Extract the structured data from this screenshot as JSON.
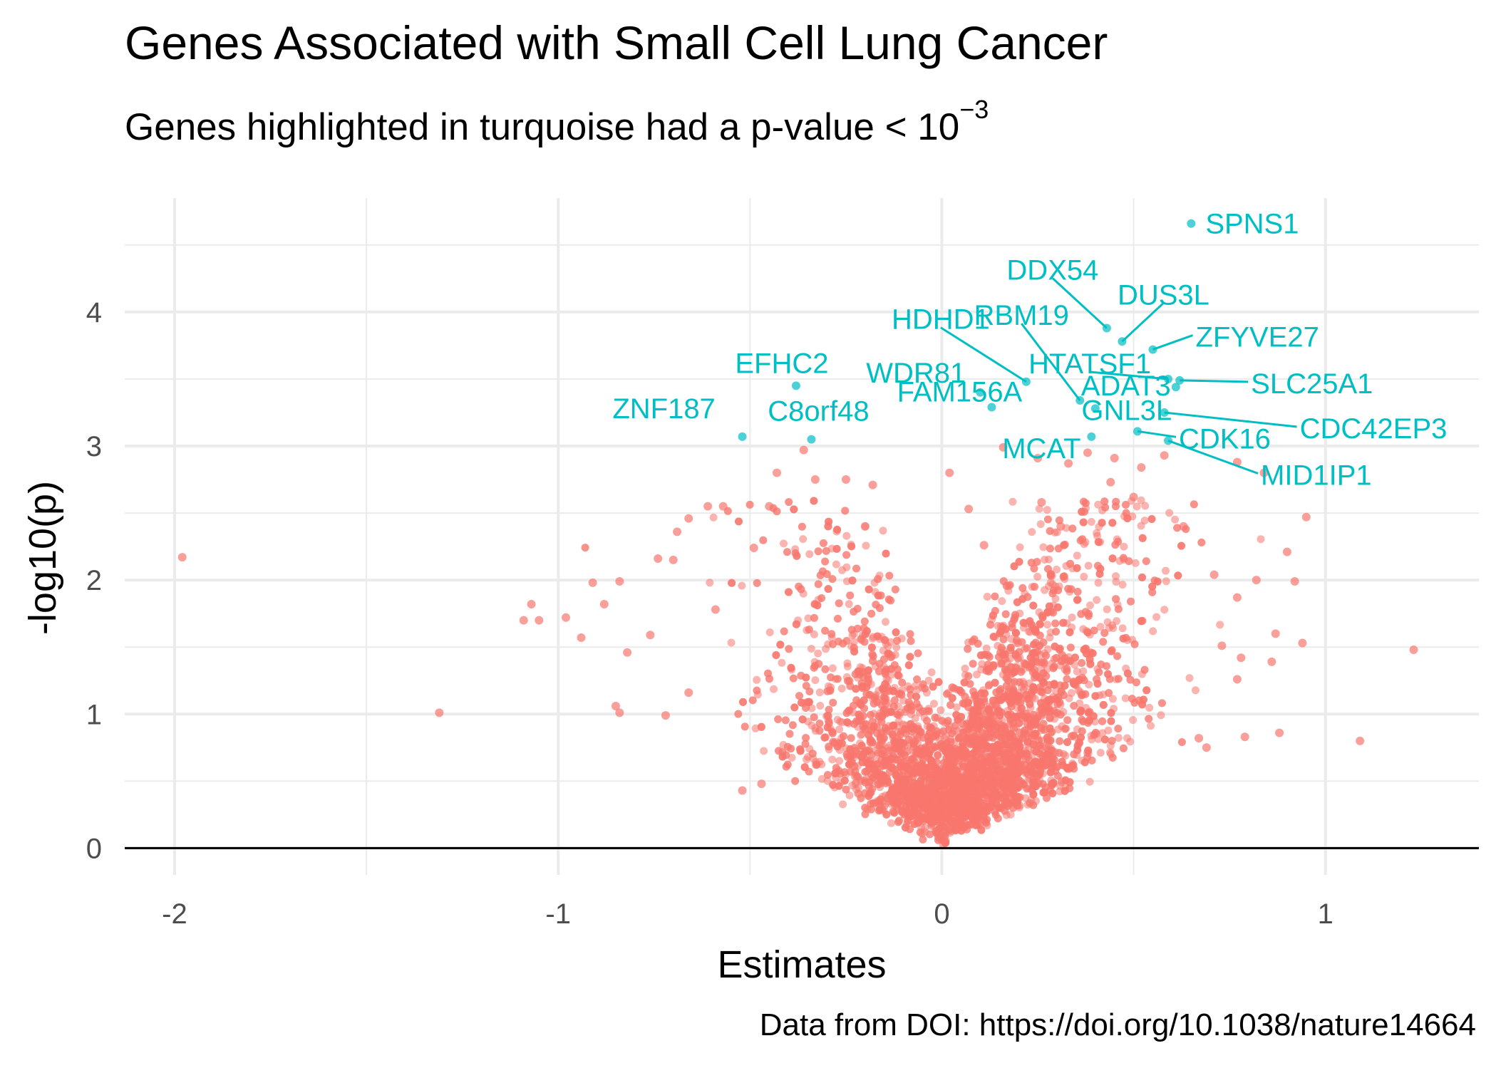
{
  "title": "Genes Associated with Small Cell Lung Cancer",
  "subtitle_text": "Genes highlighted in turquoise had a p-value < 10",
  "subtitle_exponent": "−3",
  "caption": "Data from DOI: https://doi.org/10.1038/nature14664",
  "colors": {
    "background_points": "#F8766D",
    "significant_points": "#00BFC4",
    "grid": "#ebebeb",
    "baseline": "#000000"
  },
  "chart_data": {
    "type": "scatter",
    "title": "Genes Associated with Small Cell Lung Cancer",
    "subtitle": "Genes highlighted in turquoise had a p-value < 10^-3",
    "xlabel": "Estimates",
    "ylabel": "-log10(p)",
    "xlim": [
      -2.13,
      1.4
    ],
    "ylim": [
      -0.2,
      4.85
    ],
    "x_ticks": [
      -2,
      -1,
      0,
      1
    ],
    "x_tick_labels": [
      "-2",
      "-1",
      "0",
      "1"
    ],
    "y_ticks": [
      0,
      1,
      2,
      3,
      4
    ],
    "y_tick_labels": [
      "0",
      "1",
      "2",
      "3",
      "4"
    ],
    "grid": true,
    "legend": "none",
    "series": [
      {
        "color": "#00BFC4",
        "points": [
          {
            "label": "SPNS1",
            "x": 0.65,
            "y": 4.66
          },
          {
            "label": "DDX54",
            "x": 0.43,
            "y": 3.88
          },
          {
            "label": "DUS3L",
            "x": 0.47,
            "y": 3.78
          },
          {
            "label": "ZFYVE27",
            "x": 0.55,
            "y": 3.72
          },
          {
            "label": "HDHD1",
            "x": 0.22,
            "y": 3.48
          },
          {
            "label": "RBM19",
            "x": 0.36,
            "y": 3.34
          },
          {
            "label": "HTATSF1",
            "x": 0.59,
            "y": 3.5
          },
          {
            "label": "ADAT3",
            "x": 0.61,
            "y": 3.44
          },
          {
            "label": "SLC25A1",
            "x": 0.62,
            "y": 3.49
          },
          {
            "label": "EFHC2",
            "x": -0.38,
            "y": 3.45
          },
          {
            "label": "WDR81",
            "x": 0.1,
            "y": 3.4
          },
          {
            "label": "ZNF187",
            "x": -0.52,
            "y": 3.07
          },
          {
            "label": "C8orf48",
            "x": -0.34,
            "y": 3.05
          },
          {
            "label": "FAM156A",
            "x": 0.13,
            "y": 3.29
          },
          {
            "label": "MCAT",
            "x": 0.39,
            "y": 3.07
          },
          {
            "label": "GNL3L",
            "x": 0.4,
            "y": 3.28
          },
          {
            "label": "CDK16",
            "x": 0.51,
            "y": 3.11
          },
          {
            "label": "CDC42EP3",
            "x": 0.58,
            "y": 3.25
          },
          {
            "label": "MID1IP1",
            "x": 0.59,
            "y": 3.04
          }
        ]
      },
      {
        "color": "#F8766D",
        "points": [
          {
            "x": -1.98,
            "y": 2.17
          },
          {
            "x": -1.31,
            "y": 1.01
          },
          {
            "x": -1.07,
            "y": 1.82
          },
          {
            "x": -1.09,
            "y": 1.7
          },
          {
            "x": -1.05,
            "y": 1.7
          },
          {
            "x": -0.98,
            "y": 1.72
          },
          {
            "x": -0.91,
            "y": 1.98
          },
          {
            "x": -0.94,
            "y": 1.57
          },
          {
            "x": -0.84,
            "y": 1.99
          },
          {
            "x": -0.88,
            "y": 1.82
          },
          {
            "x": -0.82,
            "y": 1.46
          },
          {
            "x": -0.85,
            "y": 1.06
          },
          {
            "x": -0.84,
            "y": 1.01
          },
          {
            "x": -0.76,
            "y": 1.59
          },
          {
            "x": -0.74,
            "y": 2.16
          },
          {
            "x": -0.7,
            "y": 2.15
          },
          {
            "x": -0.69,
            "y": 2.36
          },
          {
            "x": -0.66,
            "y": 2.46
          },
          {
            "x": -0.61,
            "y": 2.55
          },
          {
            "x": -0.57,
            "y": 2.55
          },
          {
            "x": -0.45,
            "y": 2.55
          },
          {
            "x": -0.49,
            "y": 2.24
          },
          {
            "x": -0.59,
            "y": 1.78
          },
          {
            "x": -0.66,
            "y": 1.16
          },
          {
            "x": -0.72,
            "y": 0.99
          },
          {
            "x": -0.52,
            "y": 0.43
          },
          {
            "x": -0.47,
            "y": 0.48
          },
          {
            "x": -0.33,
            "y": 2.75
          },
          {
            "x": -0.25,
            "y": 2.75
          },
          {
            "x": -0.2,
            "y": 2.4
          },
          {
            "x": -0.18,
            "y": 2.71
          },
          {
            "x": -0.43,
            "y": 2.8
          },
          {
            "x": -0.36,
            "y": 2.97
          },
          {
            "x": 0.02,
            "y": 2.8
          },
          {
            "x": 0.07,
            "y": 2.53
          },
          {
            "x": 0.11,
            "y": 2.26
          },
          {
            "x": 0.16,
            "y": 2.99
          },
          {
            "x": 0.26,
            "y": 2.58
          },
          {
            "x": 0.31,
            "y": 2.4
          },
          {
            "x": 0.25,
            "y": 2.91
          },
          {
            "x": 0.33,
            "y": 2.87
          },
          {
            "x": 0.44,
            "y": 2.73
          },
          {
            "x": 0.5,
            "y": 2.62
          },
          {
            "x": 0.63,
            "y": 2.4
          },
          {
            "x": 0.71,
            "y": 2.04
          },
          {
            "x": 0.77,
            "y": 2.88
          },
          {
            "x": 0.77,
            "y": 1.87
          },
          {
            "x": 0.78,
            "y": 1.42
          },
          {
            "x": 0.79,
            "y": 0.83
          },
          {
            "x": 0.82,
            "y": 2.0
          },
          {
            "x": 0.86,
            "y": 1.39
          },
          {
            "x": 0.87,
            "y": 1.6
          },
          {
            "x": 0.88,
            "y": 0.86
          },
          {
            "x": 0.92,
            "y": 1.99
          },
          {
            "x": 0.94,
            "y": 1.53
          },
          {
            "x": 0.9,
            "y": 2.21
          },
          {
            "x": 0.95,
            "y": 2.47
          },
          {
            "x": 0.84,
            "y": 2.8
          },
          {
            "x": 1.09,
            "y": 0.8
          },
          {
            "x": 1.23,
            "y": 1.48
          },
          {
            "x": 0.77,
            "y": 1.26
          },
          {
            "x": 0.73,
            "y": 1.51
          },
          {
            "x": 0.69,
            "y": 0.75
          },
          {
            "x": 0.67,
            "y": 0.82
          },
          {
            "x": 0.58,
            "y": 2.93
          },
          {
            "x": 0.52,
            "y": 2.84
          },
          {
            "x": 0.45,
            "y": 2.91
          },
          {
            "x": 0.38,
            "y": 2.95
          }
        ]
      }
    ]
  }
}
